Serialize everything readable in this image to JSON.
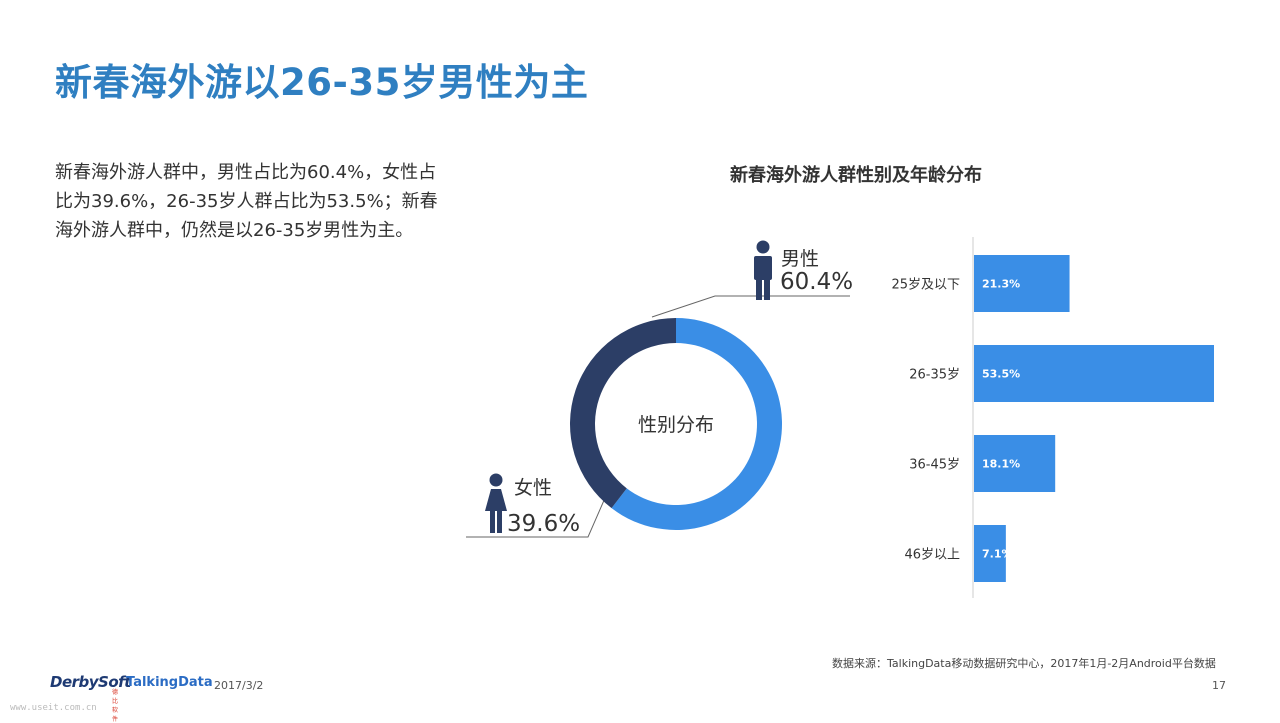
{
  "slide": {
    "title": "新春海外游以26-35岁男性为主",
    "description": "新春海外游人群中，男性占比为60.4%，女性占比为39.6%，26-35岁人群占比为53.5%；新春海外游人群中，仍然是以26-35岁男性为主。",
    "chart_title": "新春海外游人群性别及年龄分布",
    "source": "数据来源：TalkingData移动数据研究中心，2017年1月-2月Android平台数据",
    "date": "2017/3/2",
    "page_number": "17",
    "watermark": "www.useit.com.cn",
    "logos": {
      "derbysoft": "DerbySoft",
      "derbysoft_sub": "德比软件",
      "talkingdata": "TalkingData"
    }
  },
  "colors": {
    "accent": "#2f7fc1",
    "male": "#3a8ee6",
    "female": "#2c3e66",
    "bar": "#3a8ee6"
  },
  "chart_data": [
    {
      "type": "pie",
      "style": "donut",
      "title": "性别分布",
      "slices": [
        {
          "label": "男性",
          "value": 60.4,
          "display": "60.4%",
          "color": "#3a8ee6"
        },
        {
          "label": "女性",
          "value": 39.6,
          "display": "39.6%",
          "color": "#2c3e66"
        }
      ]
    },
    {
      "type": "bar",
      "orientation": "horizontal",
      "categories": [
        "25岁及以下",
        "26-35岁",
        "36-45岁",
        "46岁以上"
      ],
      "values": [
        21.3,
        53.5,
        18.1,
        7.1
      ],
      "labels": [
        "21.3%",
        "53.5%",
        "18.1%",
        "7.1%"
      ],
      "xlim": [
        0,
        53.5
      ],
      "color": "#3a8ee6"
    }
  ]
}
